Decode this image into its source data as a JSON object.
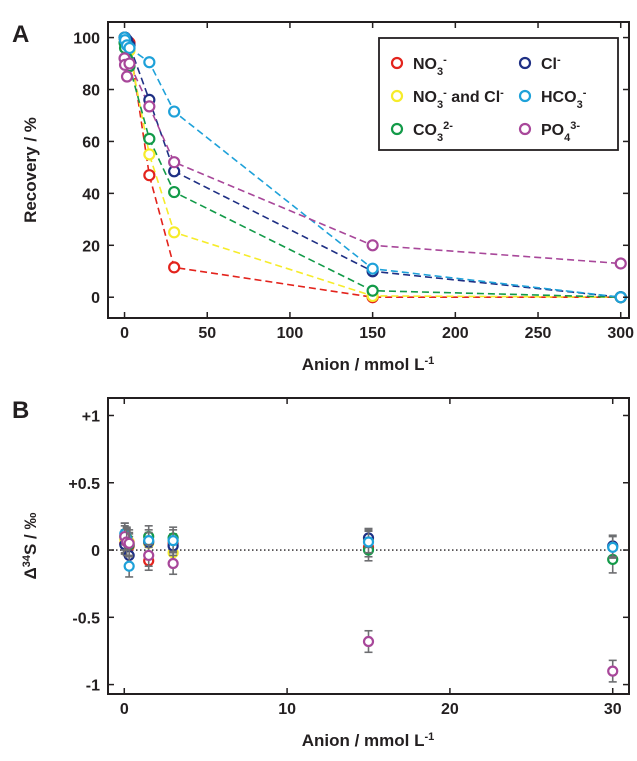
{
  "chart_data": [
    {
      "panel": "A",
      "type": "line",
      "xlabel": "Anion / mmol L",
      "xlabel_sup": "-1",
      "ylabel": "Recovery / %",
      "xlim": [
        -10,
        305
      ],
      "ylim": [
        -8,
        106
      ],
      "xticks": [
        0,
        50,
        100,
        150,
        200,
        250,
        300
      ],
      "yticks": [
        0,
        20,
        40,
        60,
        80,
        100
      ],
      "legend_position": "top-right",
      "series": [
        {
          "name": "NO3-",
          "label_base": "NO",
          "label_sub": "3",
          "label_sup": "-",
          "label_rest": "",
          "color": "#e3231c",
          "x": [
            0,
            0.3,
            1.5,
            3,
            15,
            30,
            150,
            300
          ],
          "y": [
            100,
            99,
            98,
            98,
            47,
            11.5,
            0,
            0
          ]
        },
        {
          "name": "NO3- and Cl-",
          "label_base": "NO",
          "label_sub": "3",
          "label_sup": "-",
          "label_rest": " and Cl",
          "label_rest_sup": "-",
          "color": "#f6ec2a",
          "x": [
            0,
            0.3,
            1.5,
            3,
            15,
            30,
            150,
            300
          ],
          "y": [
            100,
            98,
            96,
            95,
            55,
            25,
            0.5,
            0
          ]
        },
        {
          "name": "CO32-",
          "label_base": "CO",
          "label_sub": "3",
          "label_sup": "2-",
          "label_rest": "",
          "color": "#129a48",
          "x": [
            0,
            0.3,
            1.5,
            3,
            15,
            30,
            150,
            300
          ],
          "y": [
            98,
            96,
            92,
            89,
            61,
            40.5,
            2.5,
            0
          ]
        },
        {
          "name": "Cl-",
          "label_base": "Cl",
          "label_sub": "",
          "label_sup": "-",
          "label_rest": "",
          "color": "#1e2f84",
          "x": [
            0,
            0.3,
            1.5,
            3,
            15,
            30,
            150,
            300
          ],
          "y": [
            100,
            100,
            99,
            97,
            76,
            48.5,
            10,
            0
          ]
        },
        {
          "name": "HCO3-",
          "label_base": "HCO",
          "label_sub": "3",
          "label_sup": "-",
          "label_rest": "",
          "color": "#1ea1d9",
          "x": [
            0,
            0.3,
            1.5,
            3,
            15,
            30,
            150,
            300
          ],
          "y": [
            100,
            99,
            97,
            96,
            90.5,
            71.5,
            11,
            0
          ]
        },
        {
          "name": "PO43-",
          "label_base": "PO",
          "label_sub": "4",
          "label_sup": "3-",
          "label_rest": "",
          "color": "#a8479a",
          "x": [
            0,
            0.3,
            1.5,
            3,
            15,
            30,
            150,
            300
          ],
          "y": [
            92,
            89.5,
            85,
            90,
            73.5,
            52,
            20,
            13
          ]
        }
      ]
    },
    {
      "panel": "B",
      "type": "scatter",
      "xlabel": "Anion / mmol L",
      "xlabel_sup": "-1",
      "ylabel_prefix": "Δ",
      "ylabel_sup": "34",
      "ylabel_rest": "S / ‰",
      "xlim": [
        -1,
        31
      ],
      "ylim": [
        -1.07,
        1.13
      ],
      "xticks": [
        0,
        10,
        20,
        30
      ],
      "yticks": [
        1,
        0.5,
        0,
        -0.5,
        -1
      ],
      "ytick_labels": [
        "+1",
        "+0.5",
        "0",
        "-0.5",
        "-1"
      ],
      "reference_line": 0,
      "series": [
        {
          "name": "NO3-",
          "color": "#e3231c",
          "x": [
            0.03,
            0.15,
            0.3,
            1.5,
            3,
            15
          ],
          "y": [
            0.05,
            0.07,
            0.03,
            -0.08,
            0.05,
            0.02
          ],
          "err": [
            0.07,
            0.07,
            0.07,
            0.07,
            0.07,
            0.07
          ]
        },
        {
          "name": "NO3- and Cl-",
          "color": "#f6ec2a",
          "x": [
            0.03,
            0.15,
            0.3,
            1.5,
            3,
            15
          ],
          "y": [
            0.08,
            0.04,
            0.06,
            0.05,
            -0.02,
            0.08
          ],
          "err": [
            0.07,
            0.07,
            0.07,
            0.07,
            0.07,
            0.07
          ]
        },
        {
          "name": "CO32-",
          "color": "#129a48",
          "x": [
            0.03,
            0.15,
            0.3,
            1.5,
            3,
            15,
            30
          ],
          "y": [
            0.1,
            0.09,
            0.04,
            0.1,
            0.09,
            0.0,
            -0.07
          ],
          "err": [
            0.08,
            0.08,
            0.08,
            0.08,
            0.08,
            0.08,
            0.1
          ]
        },
        {
          "name": "Cl-",
          "color": "#1e2f84",
          "x": [
            0.03,
            0.15,
            0.3,
            1.5,
            3,
            15,
            30
          ],
          "y": [
            0.04,
            0.06,
            -0.04,
            0.06,
            0.03,
            0.09,
            0.03
          ],
          "err": [
            0.07,
            0.07,
            0.07,
            0.07,
            0.07,
            0.07,
            0.08
          ]
        },
        {
          "name": "HCO3-",
          "color": "#1ea1d9",
          "x": [
            0.03,
            0.15,
            0.3,
            1.5,
            3,
            15,
            30
          ],
          "y": [
            0.12,
            0.08,
            -0.12,
            0.07,
            0.07,
            0.06,
            0.02
          ],
          "err": [
            0.08,
            0.08,
            0.08,
            0.08,
            0.08,
            0.08,
            0.08
          ]
        },
        {
          "name": "PO43-",
          "color": "#a8479a",
          "x": [
            0.03,
            0.15,
            0.3,
            1.5,
            3,
            15,
            30
          ],
          "y": [
            0.1,
            0.06,
            0.05,
            -0.04,
            -0.1,
            -0.68,
            -0.9
          ],
          "err": [
            0.1,
            0.1,
            0.1,
            0.08,
            0.08,
            0.08,
            0.08
          ]
        }
      ]
    }
  ]
}
